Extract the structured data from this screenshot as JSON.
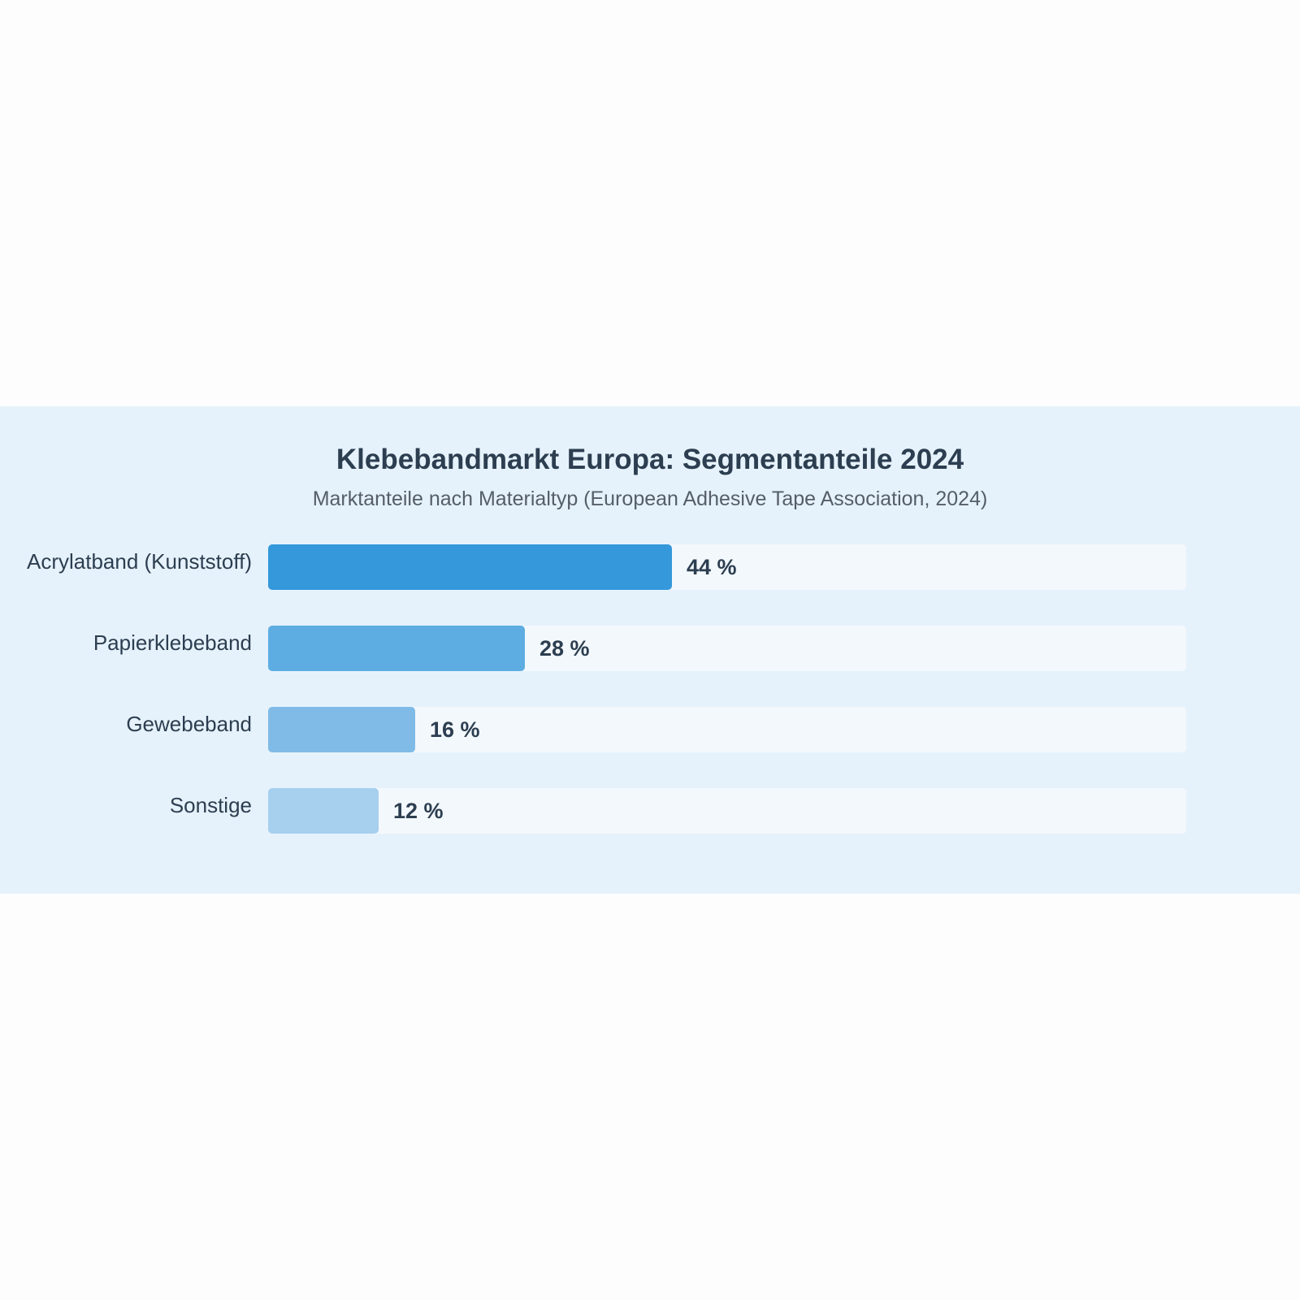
{
  "chart_data": {
    "type": "bar",
    "orientation": "horizontal",
    "title": "Klebebandmarkt Europa: Segmentanteile 2024",
    "subtitle": "Marktanteile nach Materialtyp (European Adhesive Tape Association, 2024)",
    "categories": [
      "Acrylatband (Kunststoff)",
      "Papierklebeband",
      "Gewebeband",
      "Sonstige"
    ],
    "values": [
      44,
      28,
      16,
      12
    ],
    "value_labels": [
      "44 %",
      "28 %",
      "16 %",
      "12 %"
    ],
    "xlim": [
      0,
      100
    ],
    "grid": false,
    "colors": [
      "#3498db",
      "#5dade2",
      "#7fbbe6",
      "#a7cfee"
    ]
  }
}
